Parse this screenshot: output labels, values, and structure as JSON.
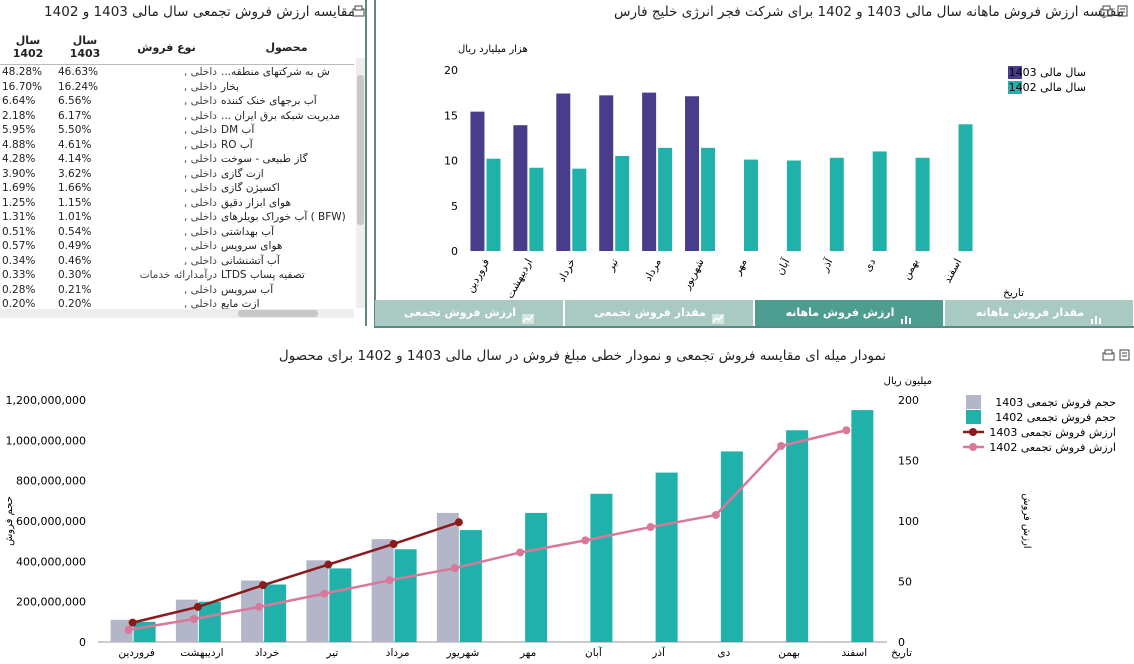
{
  "table_panel": {
    "title": "مقایسه ارزش فروش تجمعی سال مالی 1403 و 1402",
    "headers": {
      "product": "محصول",
      "type": "نوع فروش",
      "y1403": "سال 1403",
      "y1402": "سال 1402"
    },
    "rows": [
      {
        "p": "...ش به شرکتهای منطقه",
        "t": "داخلی ,",
        "a": "46.63%",
        "b": "48.28%"
      },
      {
        "p": "بخار",
        "t": "داخلی ,",
        "a": "16.24%",
        "b": "16.70%"
      },
      {
        "p": "آب برجهای خنک کننده",
        "t": "داخلی ,",
        "a": "6.56%",
        "b": "6.64%"
      },
      {
        "p": "... مدیریت شبکه برق ایران",
        "t": "داخلی ,",
        "a": "6.17%",
        "b": "2.18%"
      },
      {
        "p": "DM آب",
        "t": "داخلی ,",
        "a": "5.50%",
        "b": "5.95%"
      },
      {
        "p": "RO آب",
        "t": "داخلی ,",
        "a": "4.61%",
        "b": "4.88%"
      },
      {
        "p": "گاز طبیعی - سوخت",
        "t": "داخلی ,",
        "a": "4.14%",
        "b": "4.28%"
      },
      {
        "p": "ازت گازی",
        "t": "داخلی ,",
        "a": "3.62%",
        "b": "3.90%"
      },
      {
        "p": "اکسیژن گازی",
        "t": "داخلی ,",
        "a": "1.66%",
        "b": "1.69%"
      },
      {
        "p": "هوای ابزار دقیق",
        "t": "داخلی ,",
        "a": "1.15%",
        "b": "1.25%"
      },
      {
        "p": "آب خوراک بویلرهای ( BFW)",
        "t": "داخلی ,",
        "a": "1.01%",
        "b": "1.31%"
      },
      {
        "p": "آب بهداشتی",
        "t": "داخلی ,",
        "a": "0.54%",
        "b": "0.51%"
      },
      {
        "p": "هوای سرویس",
        "t": "داخلی ,",
        "a": "0.49%",
        "b": "0.57%"
      },
      {
        "p": "آب آتشنشانی",
        "t": "داخلی ,",
        "a": "0.46%",
        "b": "0.34%"
      },
      {
        "p": "LTDS تصفیه پساب",
        "t": "درآمدارائه خدمات",
        "a": "0.30%",
        "b": "0.33%"
      },
      {
        "p": "آب سرویس",
        "t": "داخلی ,",
        "a": "0.21%",
        "b": "0.28%"
      },
      {
        "p": "ازت مایع",
        "t": "داخلی ,",
        "a": "0.20%",
        "b": "0.20%"
      }
    ]
  },
  "month_panel": {
    "title": "مقایسه ارزش فروش ماهانه سال مالی 1403 و 1402 برای شرکت فجر انرژی خلیج فارس",
    "tabs": [
      "ارزش فروش تجمعی",
      "مقدار فروش تجمعی",
      "ارزش فروش ماهانه",
      "مقدار فروش ماهانه"
    ],
    "active_tab": 2
  },
  "bottom_panel": {
    "title": "نمودار میله ای مقایسه فروش تجمعی و نمودار خطی مبلغ فروش در سال مالی 1403 و 1402 برای محصول"
  },
  "colors": {
    "c1403": "#483d8b",
    "c1402": "#20b2aa",
    "bar1403_cum": "#b3b5c8",
    "line1403": "#8b1a1a",
    "line1402": "#d9789a",
    "accent": "#4e9d91"
  },
  "chart_data": [
    {
      "type": "bar",
      "ylabel": "هزار میلیارد ریال",
      "xlabel": "تاریخ",
      "ylim": [
        0,
        20
      ],
      "yticks": [
        0,
        5,
        10,
        15,
        20
      ],
      "categories": [
        "فروردین",
        "اردیبهشت",
        "خرداد",
        "تیر",
        "مرداد",
        "شهریور",
        "مهر",
        "آبان",
        "آذر",
        "دی",
        "بهمن",
        "اسفند"
      ],
      "series": [
        {
          "name": "سال مالی 1403",
          "values": [
            15.4,
            13.9,
            17.4,
            17.2,
            17.5,
            17.1,
            null,
            null,
            null,
            null,
            null,
            null
          ]
        },
        {
          "name": "سال مالی 1402",
          "values": [
            10.2,
            9.2,
            9.1,
            10.5,
            11.4,
            11.4,
            10.1,
            10.0,
            10.3,
            11.0,
            10.3,
            14.0
          ]
        }
      ],
      "legend": "top-right"
    },
    {
      "type": "bar",
      "ylabel": "حجم فروش",
      "y2label": "میلیون ریال",
      "y2title": "ارزش فروش",
      "xlabel": "تاریخ",
      "ylim": [
        0,
        1200000000
      ],
      "yticks": [
        0,
        200000000,
        400000000,
        600000000,
        800000000,
        1000000000,
        1200000000
      ],
      "ytick_labels": [
        "0",
        "200,000,000",
        "400,000,000",
        "600,000,000",
        "800,000,000",
        "1,000,000,000",
        "1,200,000,000"
      ],
      "y2lim": [
        0,
        200
      ],
      "y2ticks": [
        0,
        50,
        100,
        150,
        200
      ],
      "categories": [
        "فروردین",
        "اردیبهشت",
        "خرداد",
        "تیر",
        "مرداد",
        "شهریور",
        "مهر",
        "آبان",
        "آذر",
        "دی",
        "بهمن",
        "اسفند"
      ],
      "bar_series": [
        {
          "name": "حجم فروش تجمعی 1403",
          "values": [
            110000000,
            210000000,
            305000000,
            405000000,
            510000000,
            640000000,
            null,
            null,
            null,
            null,
            null,
            null
          ]
        },
        {
          "name": "حجم فروش تجمعی 1402",
          "values": [
            100000000,
            200000000,
            285000000,
            365000000,
            460000000,
            555000000,
            640000000,
            735000000,
            840000000,
            945000000,
            1050000000,
            1150000000
          ]
        }
      ],
      "line_series": [
        {
          "name": "ارزش فروش تجمعی 1403",
          "values": [
            16,
            29,
            47,
            64,
            81,
            99,
            null,
            null,
            null,
            null,
            null,
            null
          ]
        },
        {
          "name": "ارزش فروش تجمعی 1402",
          "values": [
            10,
            19,
            29,
            40,
            51,
            61,
            74,
            84,
            95,
            105,
            162,
            175
          ]
        }
      ],
      "legend": "top-right"
    }
  ]
}
